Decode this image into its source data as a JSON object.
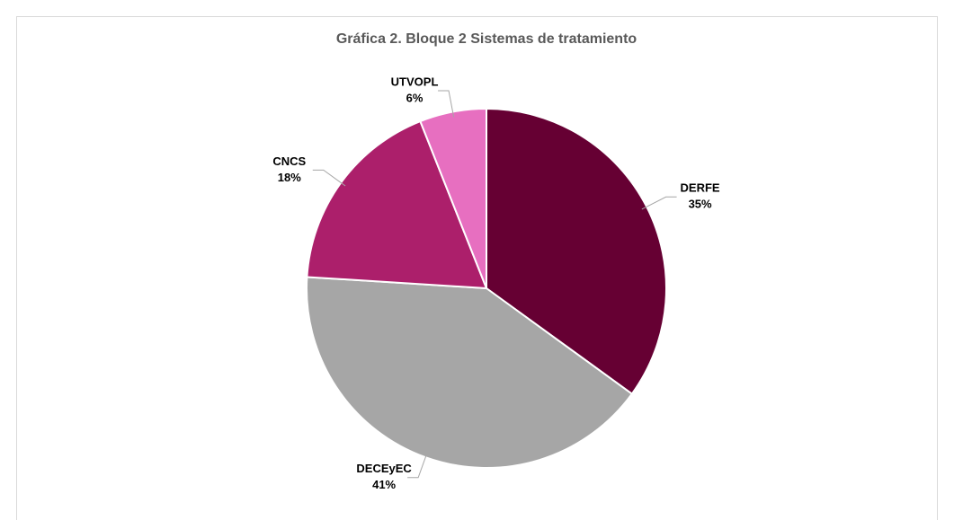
{
  "chart_data": {
    "type": "pie",
    "title": "Gráfica 2.  Bloque 2  Sistemas de tratamiento",
    "categories": [
      "DERFE",
      "DECEyEC",
      "CNCS",
      "UTVOPL"
    ],
    "values": [
      35,
      41,
      18,
      6
    ],
    "value_labels": [
      "35%",
      "41%",
      "18%",
      "6%"
    ],
    "colors": [
      "#660033",
      "#a6a6a6",
      "#ac1f6b",
      "#e76fc0"
    ]
  }
}
